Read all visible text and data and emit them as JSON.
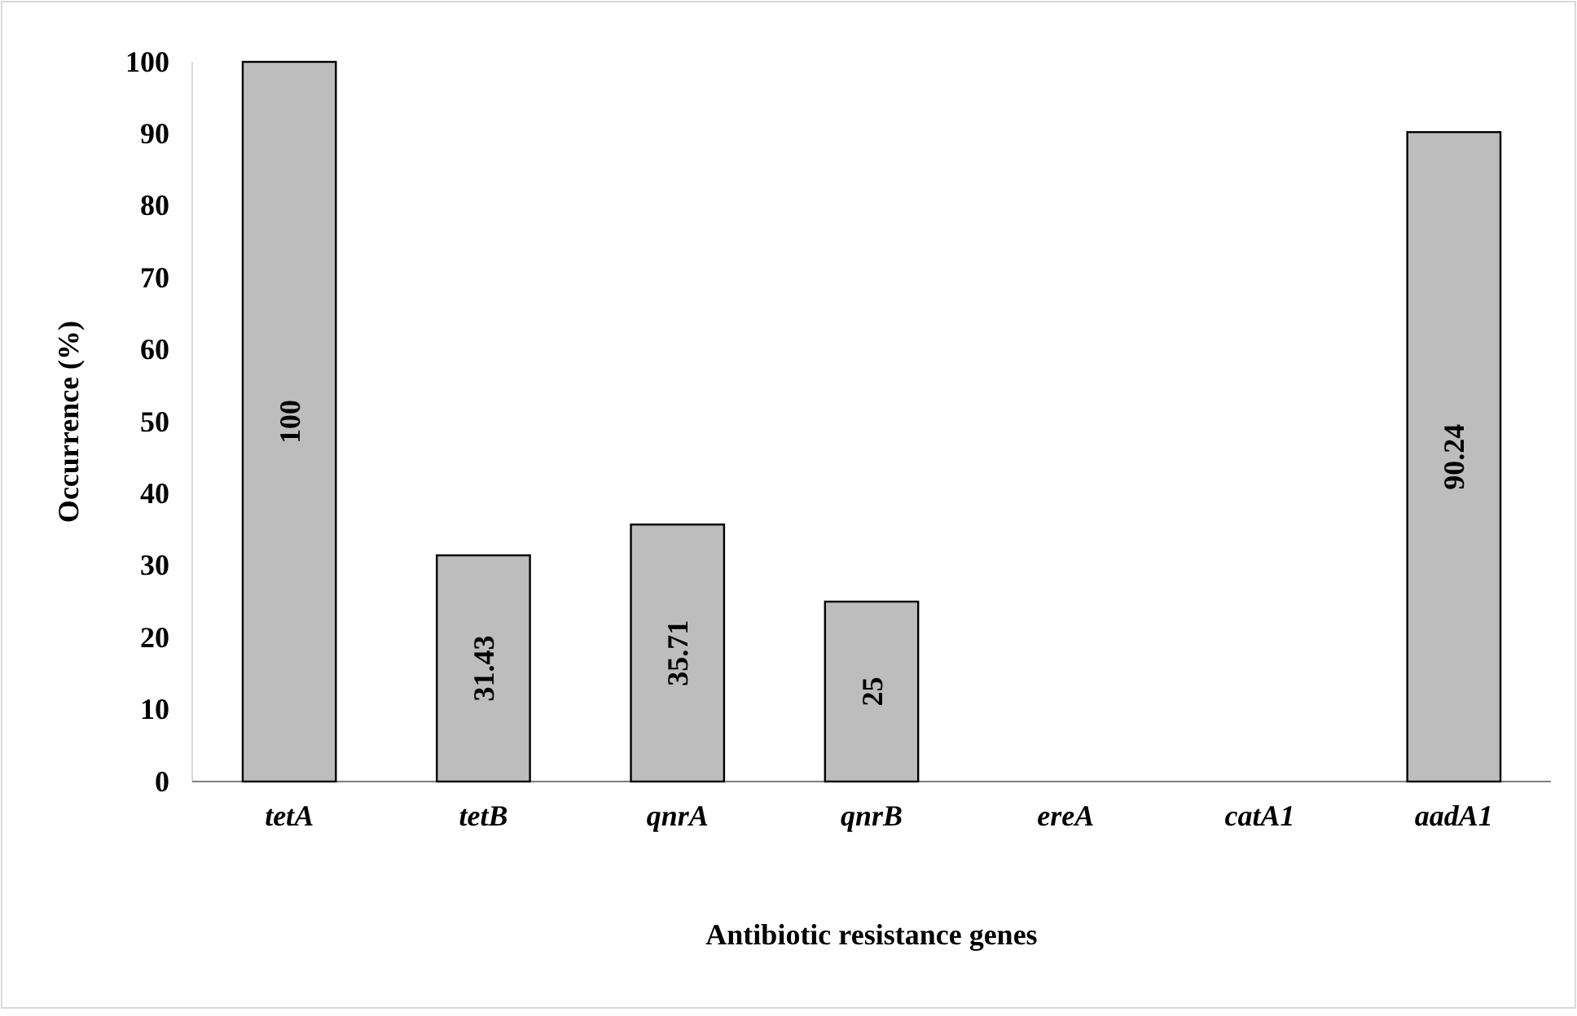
{
  "chart_data": {
    "type": "bar",
    "xlabel": "Antibiotic resistance genes",
    "ylabel": "Occurrence (%)",
    "categories": [
      "tetA",
      "tetB",
      "qnrA",
      "qnrB",
      "ereA",
      "catA1",
      "aadA1"
    ],
    "values": [
      100,
      31.43,
      35.71,
      25,
      0,
      0,
      90.24
    ],
    "value_labels": [
      "100",
      "31.43",
      "35.71",
      "25",
      null,
      null,
      "90.24"
    ],
    "color": "#bdbdbd",
    "ylim": [
      0,
      100
    ],
    "yticks": [
      0,
      10,
      20,
      30,
      40,
      50,
      60,
      70,
      80,
      90,
      100
    ],
    "grid": false
  }
}
